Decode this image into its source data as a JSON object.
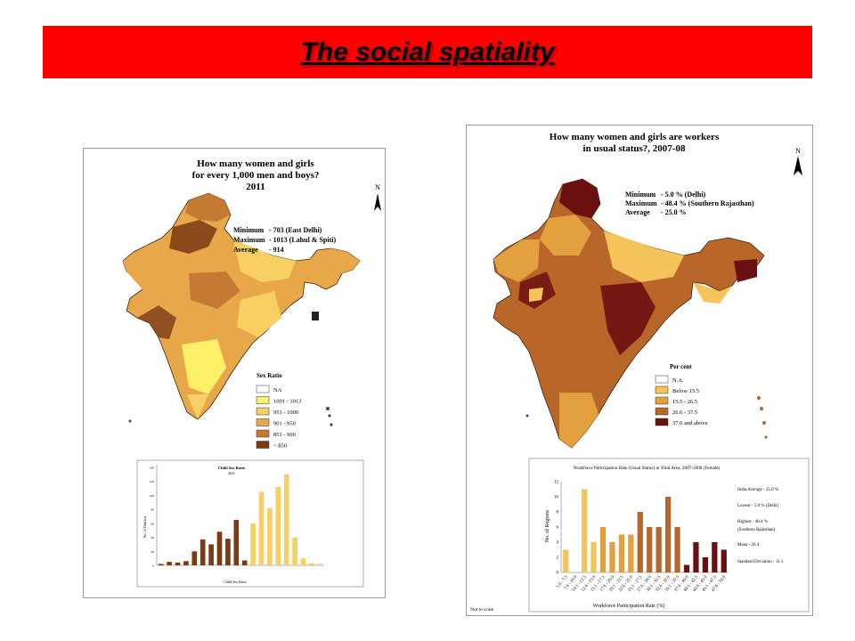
{
  "slide": {
    "title": "The social spatiality"
  },
  "left_map": {
    "title_lines": [
      "How many women and girls",
      "for every 1,000 men and boys?",
      "2011"
    ],
    "north": "N",
    "stats": [
      {
        "label": "Minimum",
        "value": "-  703  (East Delhi)"
      },
      {
        "label": "Maximum",
        "value": "-  1013 (Lahul & Spiti)"
      },
      {
        "label": "Average",
        "value": "-  914"
      }
    ],
    "legend": {
      "title": "Sex Ratio",
      "items": [
        {
          "label": "NA",
          "color": "#ffffff"
        },
        {
          "label": "1001 - 1013",
          "color": "#fff06a"
        },
        {
          "label": "951 - 1000",
          "color": "#f7cf62"
        },
        {
          "label": "901 - 950",
          "color": "#e8a84a"
        },
        {
          "label": "851 - 900",
          "color": "#c47a33"
        },
        {
          "label": "<   850",
          "color": "#7a3a14"
        }
      ]
    },
    "chart_data": {
      "type": "bar",
      "title": "Child Sex Ratio",
      "subtitle": "2011",
      "xlabel": "Child Sex Ratio",
      "ylabel": "No. of Districts",
      "ylim": [
        0,
        140
      ],
      "yticks": [
        0,
        20,
        40,
        60,
        80,
        100,
        120,
        140
      ],
      "values": [
        2,
        5,
        4,
        6,
        20,
        37,
        30,
        48,
        38,
        65,
        7,
        60,
        105,
        82,
        112,
        130,
        40,
        10,
        3,
        2
      ],
      "colors": [
        "#7a3a14",
        "#7a3a14",
        "#7a3a14",
        "#7a3a14",
        "#7a3a14",
        "#7a3a14",
        "#7a3a14",
        "#7a3a14",
        "#7a3a14",
        "#7a3a14",
        "#7a3a14",
        "#f7cf62",
        "#f7cf62",
        "#f7cf62",
        "#f7cf62",
        "#f7cf62",
        "#f7cf62",
        "#f7cf62",
        "#f7cf62",
        "#f7cf62"
      ]
    }
  },
  "right_map": {
    "title_lines": [
      "How many women and girls are workers",
      "in usual status?, 2007-08"
    ],
    "north": "N",
    "stats": [
      {
        "label": "Minimum",
        "value": "-  5.0 % (Delhi)"
      },
      {
        "label": "Maximum",
        "value": "-  48.4 % (Southern Rajasthan)"
      },
      {
        "label": "Average",
        "value": "-  25.0 %"
      }
    ],
    "legend": {
      "title": "Per cent",
      "items": [
        {
          "label": "N.A.",
          "color": "#ffffff"
        },
        {
          "label": "Below 15.5",
          "color": "#f4c35a"
        },
        {
          "label": "15.5 - 26.5",
          "color": "#e3a03e"
        },
        {
          "label": "26.6 - 37.5",
          "color": "#b8662a"
        },
        {
          "label": "37.6 and above",
          "color": "#6b1010"
        }
      ]
    },
    "footnote": "Not to scale",
    "chart_data": {
      "type": "bar",
      "title": "Workforce Participation Rate (Usual Status) in Total Area, 2007-2008 (Female)",
      "xlabel": "Workforce Participation Rate (%)",
      "ylabel": "No. of Regions",
      "ylim": [
        0,
        12
      ],
      "yticks": [
        0,
        2,
        4,
        6,
        8,
        10,
        12
      ],
      "categories": [
        "5.0 - 7.5",
        "7.6 - 10.0",
        "10.1 - 12.5",
        "12.6 - 15.0",
        "15.1 - 17.5",
        "17.6 - 20.0",
        "20.1 - 22.5",
        "22.6 - 25.0",
        "25.1 - 27.5",
        "27.6 - 30.0",
        "30.1 - 32.5",
        "32.6 - 35.0",
        "35.1 - 37.5",
        "37.6 - 40.0",
        "40.1 - 42.5",
        "42.6 - 45.0",
        "45.1 - 47.5",
        "47.6 - 50.0"
      ],
      "values": [
        3,
        0,
        11,
        4,
        6,
        4,
        5,
        5,
        8,
        6,
        6,
        10,
        6,
        1,
        4,
        2,
        4,
        3
      ],
      "colors": [
        "#f4c35a",
        "#f4c35a",
        "#f4c35a",
        "#f4c35a",
        "#e3a03e",
        "#e3a03e",
        "#e3a03e",
        "#e3a03e",
        "#b8662a",
        "#b8662a",
        "#b8662a",
        "#b8662a",
        "#b8662a",
        "#6b1010",
        "#6b1010",
        "#6b1010",
        "#6b1010",
        "#6b1010"
      ],
      "annotations": [
        "India Average - 25.0 %",
        "Lowest - 5.0 % (Delhi)",
        "Highest - 48.4 %",
        "(Southern Rajasthan)",
        "Mean - 26.4",
        "Standard Deviation - 11.1"
      ]
    }
  }
}
